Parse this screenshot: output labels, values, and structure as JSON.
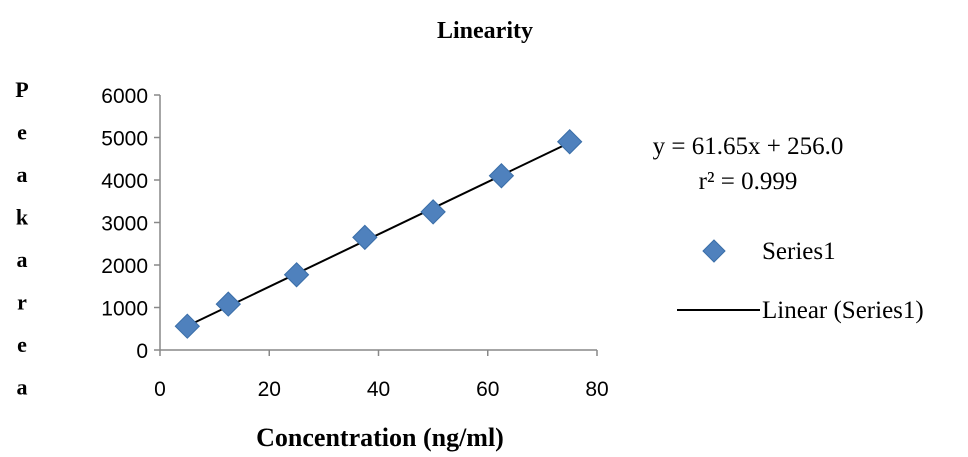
{
  "chart_data": {
    "type": "scatter",
    "title": "Linearity",
    "xlabel": "Concentration (ng/ml)",
    "ylabel": "Peakarea",
    "xlim": [
      0,
      80
    ],
    "ylim": [
      0,
      6000
    ],
    "xticks": [
      0,
      20,
      40,
      60,
      80
    ],
    "yticks": [
      0,
      1000,
      2000,
      3000,
      4000,
      5000,
      6000
    ],
    "grid": false,
    "legend_position": "right",
    "series": [
      {
        "name": "Series1",
        "color": "#4F81BD",
        "marker": "diamond",
        "points": [
          {
            "x": 5,
            "y": 560
          },
          {
            "x": 12.5,
            "y": 1080
          },
          {
            "x": 25,
            "y": 1770
          },
          {
            "x": 37.5,
            "y": 2650
          },
          {
            "x": 50,
            "y": 3250
          },
          {
            "x": 62.5,
            "y": 4100
          },
          {
            "x": 75,
            "y": 4900
          }
        ]
      }
    ],
    "trendline": {
      "name": "Linear (Series1)",
      "color": "#000000",
      "slope": 61.65,
      "intercept": 256.0,
      "x_range": [
        5,
        75
      ]
    },
    "annotations": {
      "equation": "y = 61.65x + 256.0",
      "r_squared": "r² = 0.999"
    }
  }
}
